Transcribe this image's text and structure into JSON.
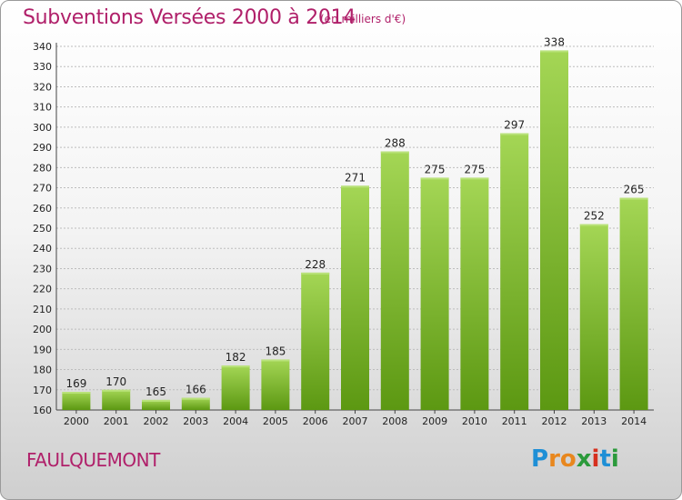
{
  "header": {
    "title": "Subventions Versées 2000 à 2014",
    "unit_note": "(en milliers d'€)"
  },
  "footer": {
    "place": "FAULQUEMONT",
    "brand": [
      "P",
      "r",
      "o",
      "x",
      "i",
      "t",
      "i"
    ]
  },
  "colors": {
    "title": "#b0206a",
    "bar_light": "#9dd14b",
    "bar_dark": "#5e9a12",
    "grid": "#bdbdbd"
  },
  "chart_data": {
    "type": "bar",
    "title": "Subventions Versées 2000 à 2014",
    "subtitle": "(en milliers d'€)",
    "categories": [
      "2000",
      "2001",
      "2002",
      "2003",
      "2004",
      "2005",
      "2006",
      "2007",
      "2008",
      "2009",
      "2010",
      "2011",
      "2012",
      "2013",
      "2014"
    ],
    "values": [
      169,
      170,
      165,
      166,
      182,
      185,
      228,
      271,
      288,
      275,
      275,
      297,
      338,
      252,
      265
    ],
    "ylim": [
      160,
      340
    ],
    "ystep": 10,
    "grid": true,
    "data_labels": true
  }
}
